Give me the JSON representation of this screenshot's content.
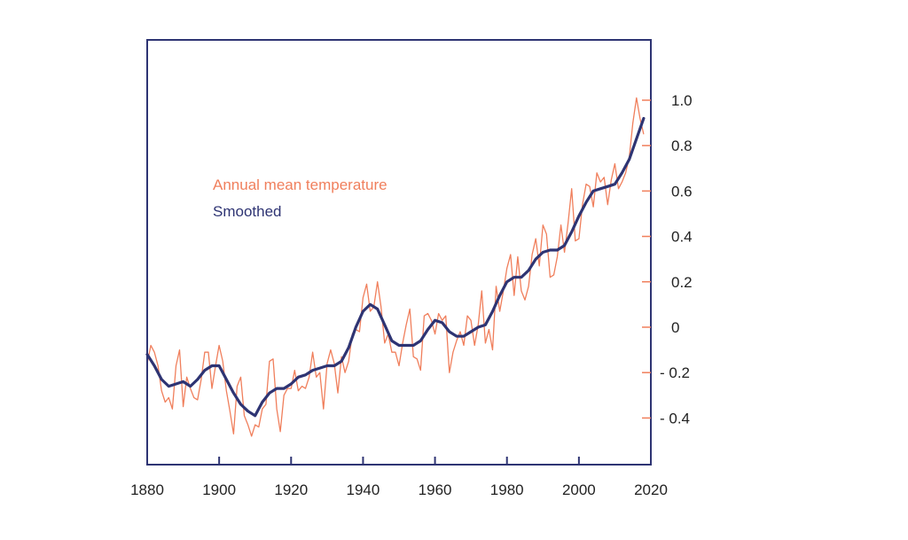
{
  "chart_data": {
    "type": "line",
    "xlim": [
      1880,
      2020
    ],
    "ylim": [
      -0.55,
      1.3
    ],
    "x_ticks": [
      {
        "value": 1880,
        "label": "1880"
      },
      {
        "value": 1900,
        "label": "1900"
      },
      {
        "value": 1920,
        "label": "1920"
      },
      {
        "value": 1940,
        "label": "1940"
      },
      {
        "value": 1960,
        "label": "1960"
      },
      {
        "value": 1980,
        "label": "1980"
      },
      {
        "value": 2000,
        "label": "2000"
      },
      {
        "value": 2020,
        "label": "2020"
      }
    ],
    "y_ticks": [
      {
        "value": 1.0,
        "label": "1.0"
      },
      {
        "value": 0.8,
        "label": "0.8"
      },
      {
        "value": 0.6,
        "label": "0.6"
      },
      {
        "value": 0.4,
        "label": "0.4"
      },
      {
        "value": 0.2,
        "label": "0.2"
      },
      {
        "value": 0.0,
        "label": "0"
      },
      {
        "value": -0.2,
        "label": "- 0.2"
      },
      {
        "value": -0.4,
        "label": "- 0.4"
      }
    ],
    "y_axis_side": "right",
    "grid": false,
    "legend_placement": "top-left",
    "series": [
      {
        "name": "Annual mean temperature",
        "color": "#f07f5c",
        "x": [
          1880,
          1881,
          1882,
          1883,
          1884,
          1885,
          1886,
          1887,
          1888,
          1889,
          1890,
          1891,
          1892,
          1893,
          1894,
          1895,
          1896,
          1897,
          1898,
          1899,
          1900,
          1901,
          1902,
          1903,
          1904,
          1905,
          1906,
          1907,
          1908,
          1909,
          1910,
          1911,
          1912,
          1913,
          1914,
          1915,
          1916,
          1917,
          1918,
          1919,
          1920,
          1921,
          1922,
          1923,
          1924,
          1925,
          1926,
          1927,
          1928,
          1929,
          1930,
          1931,
          1932,
          1933,
          1934,
          1935,
          1936,
          1937,
          1938,
          1939,
          1940,
          1941,
          1942,
          1943,
          1944,
          1945,
          1946,
          1947,
          1948,
          1949,
          1950,
          1951,
          1952,
          1953,
          1954,
          1955,
          1956,
          1957,
          1958,
          1959,
          1960,
          1961,
          1962,
          1963,
          1964,
          1965,
          1966,
          1967,
          1968,
          1969,
          1970,
          1971,
          1972,
          1973,
          1974,
          1975,
          1976,
          1977,
          1978,
          1979,
          1980,
          1981,
          1982,
          1983,
          1984,
          1985,
          1986,
          1987,
          1988,
          1989,
          1990,
          1991,
          1992,
          1993,
          1994,
          1995,
          1996,
          1997,
          1998,
          1999,
          2000,
          2001,
          2002,
          2003,
          2004,
          2005,
          2006,
          2007,
          2008,
          2009,
          2010,
          2011,
          2012,
          2013,
          2014,
          2015,
          2016,
          2017,
          2018
        ],
        "y": [
          -0.16,
          -0.08,
          -0.11,
          -0.17,
          -0.28,
          -0.33,
          -0.31,
          -0.36,
          -0.17,
          -0.1,
          -0.35,
          -0.22,
          -0.27,
          -0.31,
          -0.32,
          -0.23,
          -0.11,
          -0.11,
          -0.27,
          -0.17,
          -0.08,
          -0.15,
          -0.28,
          -0.37,
          -0.47,
          -0.26,
          -0.22,
          -0.39,
          -0.43,
          -0.48,
          -0.43,
          -0.44,
          -0.36,
          -0.34,
          -0.15,
          -0.14,
          -0.36,
          -0.46,
          -0.3,
          -0.27,
          -0.27,
          -0.19,
          -0.28,
          -0.26,
          -0.27,
          -0.22,
          -0.11,
          -0.22,
          -0.2,
          -0.36,
          -0.16,
          -0.1,
          -0.16,
          -0.29,
          -0.13,
          -0.2,
          -0.15,
          -0.03,
          -0.01,
          -0.02,
          0.13,
          0.19,
          0.07,
          0.09,
          0.2,
          0.09,
          -0.07,
          -0.03,
          -0.11,
          -0.11,
          -0.17,
          -0.07,
          0.01,
          0.08,
          -0.13,
          -0.14,
          -0.19,
          0.05,
          0.06,
          0.03,
          -0.03,
          0.06,
          0.03,
          0.05,
          -0.2,
          -0.11,
          -0.06,
          -0.02,
          -0.08,
          0.05,
          0.03,
          -0.08,
          0.01,
          0.16,
          -0.07,
          -0.01,
          -0.1,
          0.18,
          0.07,
          0.16,
          0.26,
          0.32,
          0.14,
          0.31,
          0.16,
          0.12,
          0.18,
          0.32,
          0.39,
          0.27,
          0.45,
          0.41,
          0.22,
          0.23,
          0.31,
          0.45,
          0.33,
          0.46,
          0.61,
          0.38,
          0.39,
          0.54,
          0.63,
          0.62,
          0.53,
          0.68,
          0.64,
          0.66,
          0.54,
          0.65,
          0.72,
          0.61,
          0.64,
          0.68,
          0.75,
          0.9,
          1.01,
          0.92,
          0.85
        ]
      },
      {
        "name": "Smoothed",
        "color": "#2e3473",
        "x": [
          1880,
          1882,
          1884,
          1886,
          1888,
          1890,
          1892,
          1894,
          1896,
          1898,
          1900,
          1902,
          1904,
          1906,
          1908,
          1910,
          1912,
          1914,
          1916,
          1918,
          1920,
          1922,
          1924,
          1926,
          1928,
          1930,
          1932,
          1934,
          1936,
          1938,
          1940,
          1942,
          1944,
          1946,
          1948,
          1950,
          1952,
          1954,
          1956,
          1958,
          1960,
          1962,
          1964,
          1966,
          1968,
          1970,
          1972,
          1974,
          1976,
          1978,
          1980,
          1982,
          1984,
          1986,
          1988,
          1990,
          1992,
          1994,
          1996,
          1998,
          2000,
          2002,
          2004,
          2006,
          2008,
          2010,
          2012,
          2014,
          2016,
          2018
        ],
        "y": [
          -0.12,
          -0.17,
          -0.23,
          -0.26,
          -0.25,
          -0.24,
          -0.26,
          -0.23,
          -0.19,
          -0.17,
          -0.17,
          -0.23,
          -0.29,
          -0.34,
          -0.37,
          -0.39,
          -0.33,
          -0.29,
          -0.27,
          -0.27,
          -0.25,
          -0.22,
          -0.21,
          -0.19,
          -0.18,
          -0.17,
          -0.17,
          -0.15,
          -0.09,
          0.0,
          0.07,
          0.1,
          0.08,
          0.01,
          -0.06,
          -0.08,
          -0.08,
          -0.08,
          -0.06,
          -0.01,
          0.03,
          0.02,
          -0.02,
          -0.04,
          -0.04,
          -0.02,
          0.0,
          0.01,
          0.07,
          0.14,
          0.2,
          0.22,
          0.22,
          0.25,
          0.3,
          0.33,
          0.34,
          0.34,
          0.36,
          0.42,
          0.49,
          0.55,
          0.6,
          0.61,
          0.62,
          0.63,
          0.68,
          0.74,
          0.83,
          0.92
        ]
      }
    ]
  }
}
